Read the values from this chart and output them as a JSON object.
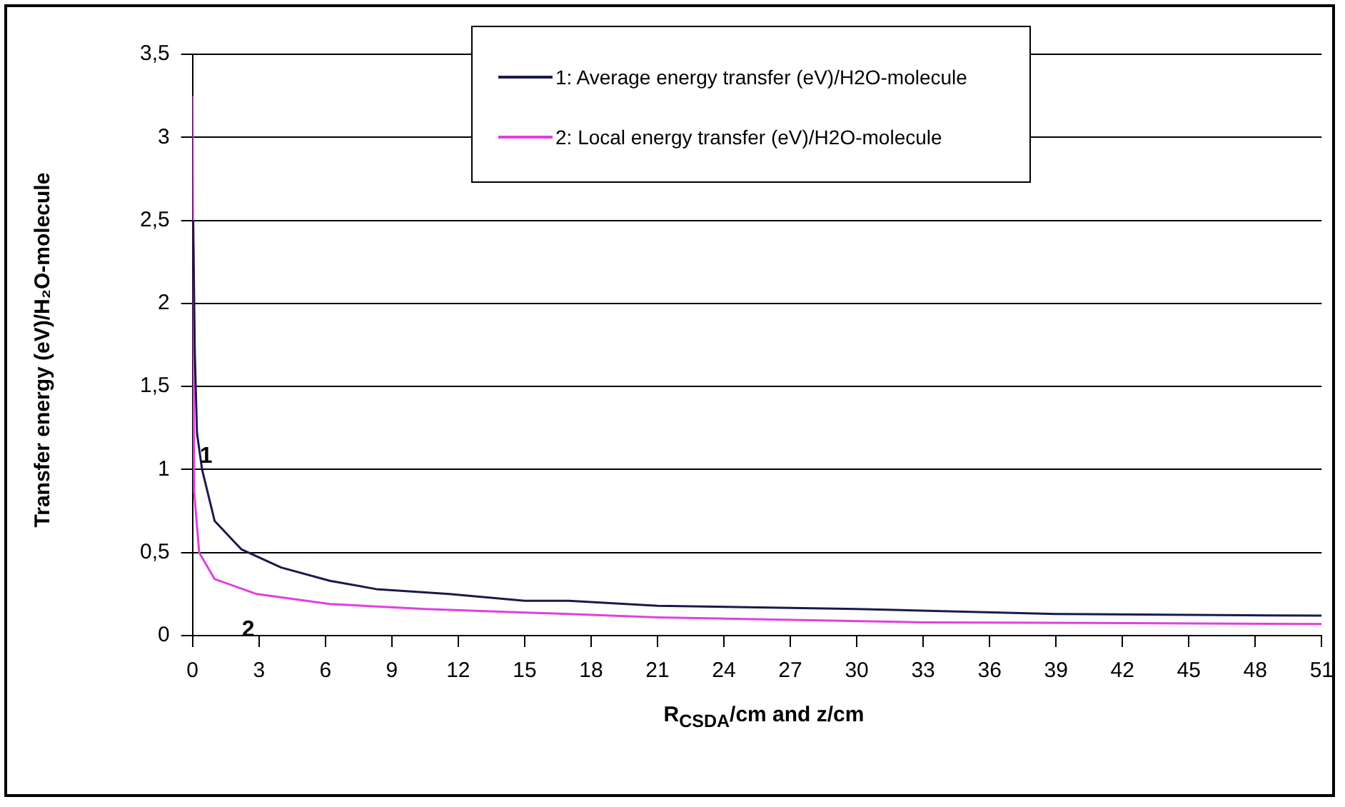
{
  "chart_data": {
    "type": "line",
    "xlabel": "R$_{CSDA}$/cm and z/cm",
    "ylabel": "Transfer energy (eV)/H₂O-molecule",
    "xlim": [
      0,
      51
    ],
    "xticks": [
      0,
      3,
      6,
      9,
      12,
      15,
      18,
      21,
      24,
      27,
      30,
      33,
      36,
      39,
      42,
      45,
      48,
      51
    ],
    "ylim": [
      0,
      3.5
    ],
    "yticks": [
      0,
      {
        "value": 0.5,
        "label": "0,5"
      },
      1,
      {
        "value": 1.5,
        "label": "1,5"
      },
      2,
      {
        "value": 2.5,
        "label": "2,5"
      },
      3,
      {
        "value": 3.5,
        "label": "3,5"
      }
    ],
    "grid": "y",
    "legend": "top",
    "marker": "none",
    "line_style": "solid",
    "series": [
      {
        "name": "1: Average energy transfer (eV)/H2O-molecule",
        "color": "#1a1a4a",
        "x": [
          0.03,
          0.1,
          0.2,
          0.43,
          1,
          2.2,
          4,
          6.2,
          8.3,
          11.6,
          15,
          17,
          21,
          30,
          39,
          51
        ],
        "values": [
          2.5,
          1.72,
          1.22,
          1,
          0.69,
          0.52,
          0.41,
          0.33,
          0.28,
          0.25,
          0.21,
          0.21,
          0.18,
          0.16,
          0.13,
          0.12
        ]
      },
      {
        "name": "2: Local energy transfer (eV)/H2O-molecule",
        "color": "#e040e0",
        "x": [
          0,
          0.07,
          0.3,
          1,
          2.9,
          6.2,
          10.5,
          17,
          21,
          33,
          51
        ],
        "values": [
          3.25,
          0.87,
          0.5,
          0.34,
          0.25,
          0.19,
          0.16,
          0.13,
          0.11,
          0.08,
          0.07
        ]
      }
    ],
    "annotations": [
      "1",
      "2"
    ]
  }
}
